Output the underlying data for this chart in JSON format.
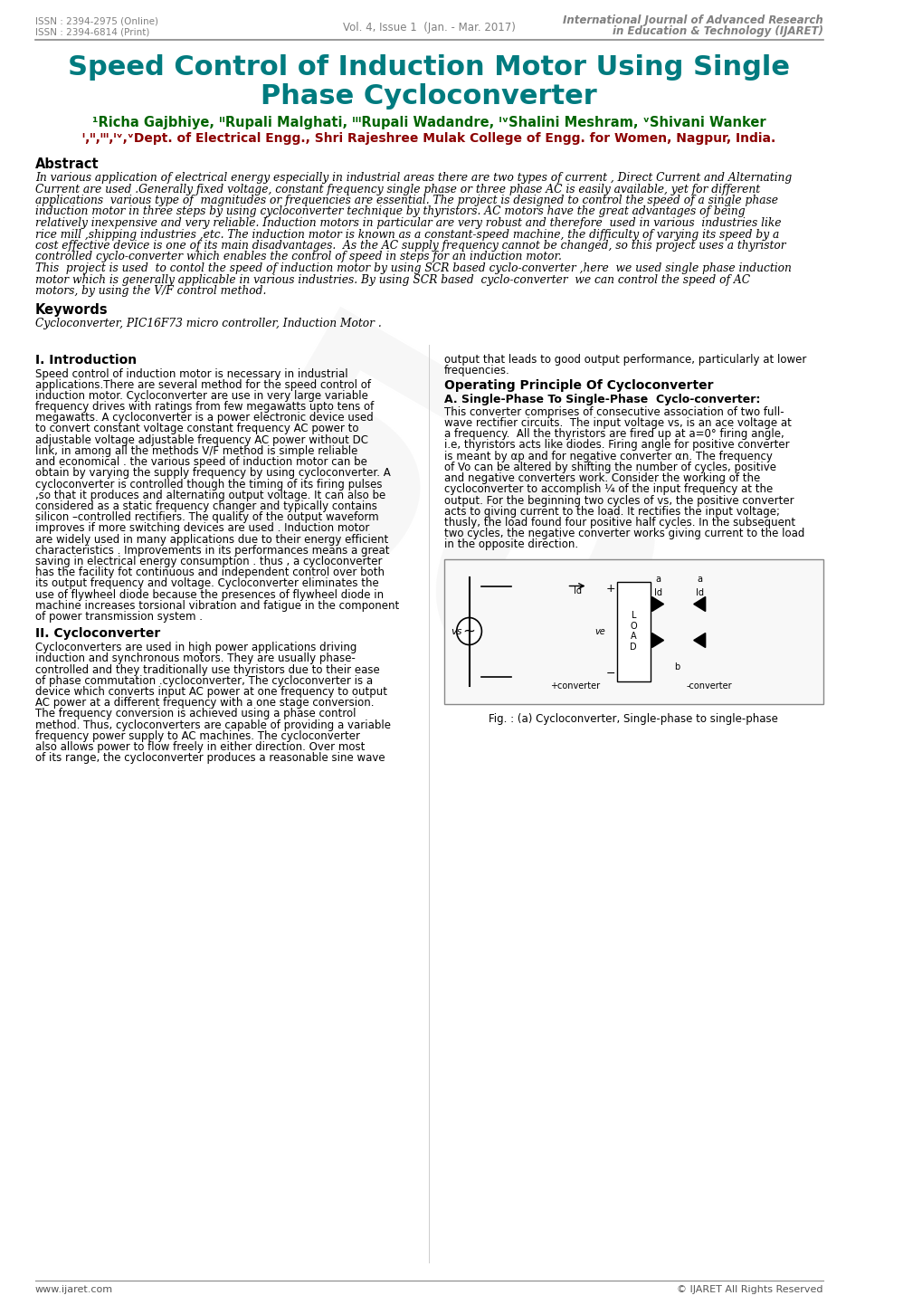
{
  "header_left_line1": "ISSN : 2394-2975 (Online)",
  "header_left_line2": "ISSN : 2394-6814 (Print)",
  "header_center": "Vol. 4, Issue 1  (Jan. - Mar. 2017)",
  "header_right_line1": "International Journal of Advanced Research",
  "header_right_line2": "in Education & Technology (IJARET)",
  "title_line1": "Speed Control of Induction Motor Using Single",
  "title_line2": "Phase Cycloconverter",
  "authors": "¹Richa Gajbhiye, ᴵᴵRupali Malghati, ᴵᴵᴵRupali Wadandre, ᴵᵛShalini Meshram, ᵛShivani Wanker",
  "affiliation": "ᴵ,ᴵᴵ,ᴵᴵᴵ,ᴵᵛ,ᵛDept. of Electrical Engg., Shri Rajeshree Mulak College of Engg. for Women, Nagpur, India.",
  "abstract_title": "Abstract",
  "abstract_text": "In various application of electrical energy especially in industrial areas there are two types of current , Direct Current and Alternating\nCurrent are used .Generally fixed voltage, constant frequency single phase or three phase AC is easily available, yet for different\napplications  various type of  magnitudes or frequencies are essential. The project is designed to control the speed of a single phase\ninduction motor in three steps by using cycloconverter technique by thyristors. AC motors have the great advantages of being\nrelatively inexpensive and very reliable. Induction motors in particular are very robust and therefore  used in various  industries like\nrice mill ,shipping industries ,etc. The induction motor is known as a constant-speed machine, the difficulty of varying its speed by a\ncost effective device is one of its main disadvantages.  As the AC supply frequency cannot be changed, so this project uses a thyristor\ncontrolled cyclo-converter which enables the control of speed in steps for an induction motor.\nThis  project is used  to contol the speed of induction motor by using SCR based cyclo-converter ,here  we used single phase induction\nmotor which is generally applicable in various industries. By using SCR based  cyclo-converter  we can control the speed of AC\nmotors, by using the V/F control method.",
  "keywords_title": "Keywords",
  "keywords_text": "Cycloconverter, PIC16F73 micro controller, Induction Motor .",
  "section1_title": "I. Introduction",
  "section1_col1": "Speed control of induction motor is necessary in industrial\napplications.There are several method for the speed control of\ninduction motor. Cycloconverter are use in very large variable\nfrequency drives with ratings from few megawatts upto tens of\nmegawatts. A cycloconverter is a power electronic device used\nto convert constant voltage constant frequency AC power to\nadjustable voltage adjustable frequency AC power without DC\nlink, in among all the methods V/F method is simple reliable\nand economical . the various speed of induction motor can be\nobtain by varying the supply frequency by using cycloconverter. A\ncycloconverter is controlled though the timing of its firing pulses\n,so that it produces and alternating output voltage. It can also be\nconsidered as a static frequency changer and typically contains\nsilicon –controlled rectifiers. The quality of the output waveform\nimproves if more switching devices are used . Induction motor\nare widely used in many applications due to their energy efficient\ncharacteristics . Improvements in its performances means a great\nsaving in electrical energy consumption . thus , a cycloconverter\nhas the facility fot continuous and independent control over both\nits output frequency and voltage. Cycloconverter eliminates the\nuse of flywheel diode because the presences of flywheel diode in\nmachine increases torsional vibration and fatigue in the component\nof power transmission system .",
  "section1_col2_top": "output that leads to good output performance, particularly at lower\nfrequencies.",
  "section2_title": "Operating Principle Of Cycloconverter",
  "section2_sub": "A. Single-Phase To Single-Phase  Cyclo-converter:",
  "section2_col2": "This converter comprises of consecutive association of two full-\nwave rectifier circuits.  The input voltage vs, is an ace voltage at\na frequency.  All the thyristors are fired up at a=0° firing angle,\ni.e, thyristors acts like diodes. Firing angle for positive converter\nis meant by αp and for negative converter αn. The frequency\nof Vo can be altered by shifting the number of cycles, positive\nand negative converters work. Consider the working of the\ncycloconverter to accomplish ¼ of the input frequency at the\noutput. For the beginning two cycles of vs, the positive converter\nacts to giving current to the load. It rectifies the input voltage;\nthusly, the load found four positive half cycles. In the subsequent\ntwo cycles, the negative converter works giving current to the load\nin the opposite direction.",
  "section2_title2": "II. Cycloconverter",
  "section2_col1_text": "Cycloconverters are used in high power applications driving\ninduction and synchronous motors. They are usually phase-\ncontrolled and they traditionally use thyristors due to their ease\nof phase commutation .cycloconverter, The cycloconverter is a\ndevice which converts input AC power at one frequency to output\nAC power at a different frequency with a one stage conversion.\nThe frequency conversion is achieved using a phase control\nmethod. Thus, cycloconverters are capable of providing a variable\nfrequency power supply to AC machines. The cycloconverter\nalso allows power to flow freely in either direction. Over most\nof its range, the cycloconverter produces a reasonable sine wave",
  "fig_caption": "Fig. : (a) Cycloconverter, Single-phase to single-phase",
  "footer_left": "www.ijaret.com",
  "footer_right": "© IJARET All Rights Reserved",
  "title_color": "#007B7F",
  "authors_color": "#006400",
  "affiliation_color": "#8B0000",
  "header_color": "#808080",
  "section_heading_color": "#000000",
  "body_color": "#000000",
  "background_color": "#ffffff"
}
